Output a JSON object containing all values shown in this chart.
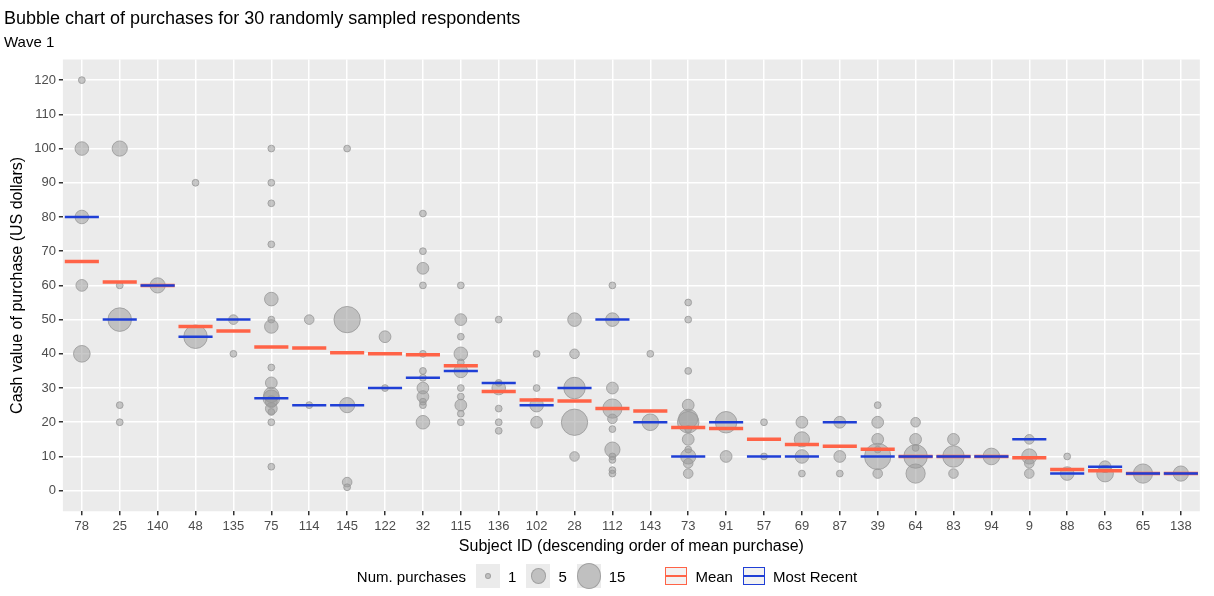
{
  "chart_data": {
    "type": "bubble",
    "title": "Bubble chart of purchases for 30 randomly sampled respondents",
    "subtitle": "Wave 1",
    "xlabel": "Subject ID (descending order of mean purchase)",
    "ylabel": "Cash value of purchase (US dollars)",
    "legend_title": "Num. purchases",
    "legend": "bottom",
    "grid": true,
    "categories": [
      "78",
      "25",
      "140",
      "48",
      "135",
      "75",
      "114",
      "145",
      "122",
      "32",
      "115",
      "136",
      "102",
      "28",
      "112",
      "143",
      "73",
      "91",
      "57",
      "69",
      "87",
      "39",
      "64",
      "83",
      "94",
      "9",
      "88",
      "63",
      "65",
      "138"
    ],
    "ylim": [
      -6,
      126
    ],
    "yticks": [
      0,
      10,
      20,
      30,
      40,
      50,
      60,
      70,
      80,
      90,
      100,
      110,
      120
    ],
    "size_legend": [
      1,
      5,
      15
    ],
    "series": [
      {
        "color": "#999999",
        "x": [
          "78",
          "78",
          "78",
          "78",
          "78",
          "25",
          "25",
          "25",
          "25",
          "25",
          "140",
          "48",
          "48",
          "135",
          "135",
          "75",
          "75",
          "75",
          "75",
          "75",
          "75",
          "75",
          "75",
          "75",
          "75",
          "75",
          "75",
          "75",
          "75",
          "75",
          "75",
          "114",
          "114",
          "145",
          "145",
          "145",
          "145",
          "145",
          "122",
          "122",
          "32",
          "32",
          "32",
          "32",
          "32",
          "32",
          "32",
          "32",
          "32",
          "32",
          "32",
          "32",
          "115",
          "115",
          "115",
          "115",
          "115",
          "115",
          "115",
          "115",
          "115",
          "115",
          "115",
          "136",
          "136",
          "136",
          "136",
          "136",
          "136",
          "102",
          "102",
          "102",
          "102",
          "28",
          "28",
          "28",
          "28",
          "28",
          "112",
          "112",
          "112",
          "112",
          "112",
          "112",
          "112",
          "112",
          "112",
          "112",
          "112",
          "143",
          "143",
          "73",
          "73",
          "73",
          "73",
          "73",
          "73",
          "73",
          "73",
          "73",
          "73",
          "73",
          "73",
          "91",
          "91",
          "57",
          "57",
          "69",
          "69",
          "69",
          "69",
          "87",
          "87",
          "87",
          "39",
          "39",
          "39",
          "39",
          "39",
          "39",
          "64",
          "64",
          "64",
          "64",
          "64",
          "83",
          "83",
          "83",
          "94",
          "9",
          "9",
          "9",
          "9",
          "88",
          "88",
          "63",
          "63",
          "65",
          "138"
        ],
        "values": [
          120,
          100,
          80,
          60,
          40,
          100,
          60,
          50,
          25,
          20,
          60,
          90,
          45,
          50,
          40,
          100,
          90,
          84,
          72,
          56,
          50,
          48,
          36,
          31.5,
          28,
          27,
          26,
          24,
          23,
          20,
          7,
          50,
          25,
          100,
          50,
          25,
          2.5,
          1,
          45,
          30,
          81,
          70,
          65,
          60,
          40,
          35,
          33,
          30,
          27.5,
          26,
          25,
          20,
          60,
          50,
          45,
          40,
          37.5,
          35,
          30,
          27.5,
          25,
          22.5,
          20,
          50,
          31.5,
          30,
          24,
          20,
          17.5,
          40,
          30,
          25,
          20,
          50,
          40,
          30,
          20,
          10,
          60,
          50,
          30,
          24,
          21,
          18,
          12,
          10,
          9,
          6,
          5,
          40,
          20,
          55,
          50,
          35,
          25,
          21,
          20,
          18,
          15,
          12,
          10,
          8,
          5,
          20,
          10,
          20,
          10,
          20,
          15,
          10,
          5,
          20,
          10,
          5,
          25,
          20,
          15,
          12,
          10,
          5,
          20,
          15,
          12.5,
          10,
          5,
          15,
          10,
          5,
          10,
          15,
          10,
          8,
          5,
          10,
          5,
          7,
          5,
          5,
          5
        ],
        "sizes": [
          1,
          4,
          4,
          3,
          6,
          5,
          1,
          12,
          1,
          1,
          5,
          1,
          12,
          2,
          1,
          1,
          1,
          1,
          1,
          4,
          1,
          4,
          1,
          3,
          5,
          6,
          3,
          3,
          1,
          1,
          1,
          2,
          1,
          1,
          15,
          5,
          2,
          1,
          3,
          1,
          1,
          1,
          3,
          1,
          1,
          1,
          1,
          3,
          3,
          1,
          1,
          4,
          1,
          3,
          1,
          4,
          1,
          4,
          1,
          1,
          3,
          1,
          1,
          1,
          1,
          4,
          1,
          1,
          1,
          1,
          1,
          4,
          3,
          4,
          2,
          10,
          15,
          2,
          1,
          4,
          3,
          8,
          2,
          1,
          5,
          1,
          1,
          1,
          1,
          1,
          6,
          1,
          1,
          1,
          3,
          8,
          10,
          1,
          3,
          1,
          5,
          2,
          2,
          10,
          3,
          1,
          1,
          3,
          5,
          4,
          1,
          3,
          3,
          1,
          1,
          3,
          3,
          1,
          15,
          2,
          2,
          3,
          1,
          12,
          8,
          3,
          10,
          2,
          6,
          2,
          5,
          2,
          2,
          1,
          4,
          3,
          6,
          8,
          5
        ]
      },
      {
        "type": "box",
        "name": "Mean",
        "color": "#ff6347",
        "boxes": [
          {
            "low": 67,
            "q1": 67,
            "median": 67,
            "q3": 67,
            "high": 67
          },
          {
            "low": 61,
            "q1": 61,
            "median": 61,
            "q3": 61,
            "high": 61
          },
          {
            "low": 60,
            "q1": 60,
            "median": 60,
            "q3": 60,
            "high": 60
          },
          {
            "low": 48,
            "q1": 48,
            "median": 48,
            "q3": 48,
            "high": 48
          },
          {
            "low": 46.7,
            "q1": 46.7,
            "median": 46.7,
            "q3": 46.7,
            "high": 46.7
          },
          {
            "low": 42,
            "q1": 42,
            "median": 42,
            "q3": 42,
            "high": 42
          },
          {
            "low": 41.7,
            "q1": 41.7,
            "median": 41.7,
            "q3": 41.7,
            "high": 41.7
          },
          {
            "low": 40.3,
            "q1": 40.3,
            "median": 40.3,
            "q3": 40.3,
            "high": 40.3
          },
          {
            "low": 40,
            "q1": 40,
            "median": 40,
            "q3": 40,
            "high": 40
          },
          {
            "low": 39.7,
            "q1": 39.7,
            "median": 39.7,
            "q3": 39.7,
            "high": 39.7
          },
          {
            "low": 36.5,
            "q1": 36.5,
            "median": 36.5,
            "q3": 36.5,
            "high": 36.5
          },
          {
            "low": 29,
            "q1": 29,
            "median": 29,
            "q3": 29,
            "high": 29
          },
          {
            "low": 26.5,
            "q1": 26.5,
            "median": 26.5,
            "q3": 26.5,
            "high": 26.5
          },
          {
            "low": 26.2,
            "q1": 26.2,
            "median": 26.2,
            "q3": 26.2,
            "high": 26.2
          },
          {
            "low": 24,
            "q1": 24,
            "median": 24,
            "q3": 24,
            "high": 24
          },
          {
            "low": 23.3,
            "q1": 23.3,
            "median": 23.3,
            "q3": 23.3,
            "high": 23.3
          },
          {
            "low": 18.5,
            "q1": 18.5,
            "median": 18.5,
            "q3": 18.5,
            "high": 18.5
          },
          {
            "low": 18.2,
            "q1": 18.2,
            "median": 18.2,
            "q3": 18.2,
            "high": 18.2
          },
          {
            "low": 15,
            "q1": 15,
            "median": 15,
            "q3": 15,
            "high": 15
          },
          {
            "low": 13.5,
            "q1": 13.5,
            "median": 13.5,
            "q3": 13.5,
            "high": 13.5
          },
          {
            "low": 13,
            "q1": 13,
            "median": 13,
            "q3": 13,
            "high": 13
          },
          {
            "low": 12.1,
            "q1": 12.1,
            "median": 12.1,
            "q3": 12.1,
            "high": 12.1
          },
          {
            "low": 10,
            "q1": 10,
            "median": 10,
            "q3": 10,
            "high": 10
          },
          {
            "low": 10,
            "q1": 10,
            "median": 10,
            "q3": 10,
            "high": 10
          },
          {
            "low": 10,
            "q1": 10,
            "median": 10,
            "q3": 10,
            "high": 10
          },
          {
            "low": 9.6,
            "q1": 9.6,
            "median": 9.6,
            "q3": 9.6,
            "high": 9.6
          },
          {
            "low": 6.2,
            "q1": 6.2,
            "median": 6.2,
            "q3": 6.2,
            "high": 6.2
          },
          {
            "low": 5.8,
            "q1": 5.8,
            "median": 5.8,
            "q3": 5.8,
            "high": 5.8
          },
          {
            "low": 5,
            "q1": 5,
            "median": 5,
            "q3": 5,
            "high": 5
          },
          {
            "low": 5,
            "q1": 5,
            "median": 5,
            "q3": 5,
            "high": 5
          }
        ]
      },
      {
        "type": "box",
        "name": "Most Recent",
        "color": "#1f3fd6",
        "boxes": [
          {
            "low": 80,
            "q1": 80,
            "median": 80,
            "q3": 80,
            "high": 80
          },
          {
            "low": 50,
            "q1": 50,
            "median": 50,
            "q3": 50,
            "high": 50
          },
          {
            "low": 60,
            "q1": 60,
            "median": 60,
            "q3": 60,
            "high": 60
          },
          {
            "low": 45,
            "q1": 45,
            "median": 45,
            "q3": 45,
            "high": 45
          },
          {
            "low": 50,
            "q1": 50,
            "median": 50,
            "q3": 50,
            "high": 50
          },
          {
            "low": 27,
            "q1": 27,
            "median": 27,
            "q3": 27,
            "high": 27
          },
          {
            "low": 25,
            "q1": 25,
            "median": 25,
            "q3": 25,
            "high": 25
          },
          {
            "low": 25,
            "q1": 25,
            "median": 25,
            "q3": 25,
            "high": 25
          },
          {
            "low": 30,
            "q1": 30,
            "median": 30,
            "q3": 30,
            "high": 30
          },
          {
            "low": 33,
            "q1": 33,
            "median": 33,
            "q3": 33,
            "high": 33
          },
          {
            "low": 35,
            "q1": 35,
            "median": 35,
            "q3": 35,
            "high": 35
          },
          {
            "low": 31.5,
            "q1": 31.5,
            "median": 31.5,
            "q3": 31.5,
            "high": 31.5
          },
          {
            "low": 25,
            "q1": 25,
            "median": 25,
            "q3": 25,
            "high": 25
          },
          {
            "low": 30,
            "q1": 30,
            "median": 30,
            "q3": 30,
            "high": 30
          },
          {
            "low": 50,
            "q1": 50,
            "median": 50,
            "q3": 50,
            "high": 50
          },
          {
            "low": 20,
            "q1": 20,
            "median": 20,
            "q3": 20,
            "high": 20
          },
          {
            "low": 10,
            "q1": 10,
            "median": 10,
            "q3": 10,
            "high": 10
          },
          {
            "low": 20,
            "q1": 20,
            "median": 20,
            "q3": 20,
            "high": 20
          },
          {
            "low": 10,
            "q1": 10,
            "median": 10,
            "q3": 10,
            "high": 10
          },
          {
            "low": 10,
            "q1": 10,
            "median": 10,
            "q3": 10,
            "high": 10
          },
          {
            "low": 20,
            "q1": 20,
            "median": 20,
            "q3": 20,
            "high": 20
          },
          {
            "low": 10,
            "q1": 10,
            "median": 10,
            "q3": 10,
            "high": 10
          },
          {
            "low": 10,
            "q1": 10,
            "median": 10,
            "q3": 10,
            "high": 10
          },
          {
            "low": 10,
            "q1": 10,
            "median": 10,
            "q3": 10,
            "high": 10
          },
          {
            "low": 10,
            "q1": 10,
            "median": 10,
            "q3": 10,
            "high": 10
          },
          {
            "low": 15,
            "q1": 15,
            "median": 15,
            "q3": 15,
            "high": 15
          },
          {
            "low": 5,
            "q1": 5,
            "median": 5,
            "q3": 5,
            "high": 5
          },
          {
            "low": 7,
            "q1": 7,
            "median": 7,
            "q3": 7,
            "high": 7
          },
          {
            "low": 5,
            "q1": 5,
            "median": 5,
            "q3": 5,
            "high": 5
          },
          {
            "low": 5,
            "q1": 5,
            "median": 5,
            "q3": 5,
            "high": 5
          }
        ]
      }
    ]
  }
}
